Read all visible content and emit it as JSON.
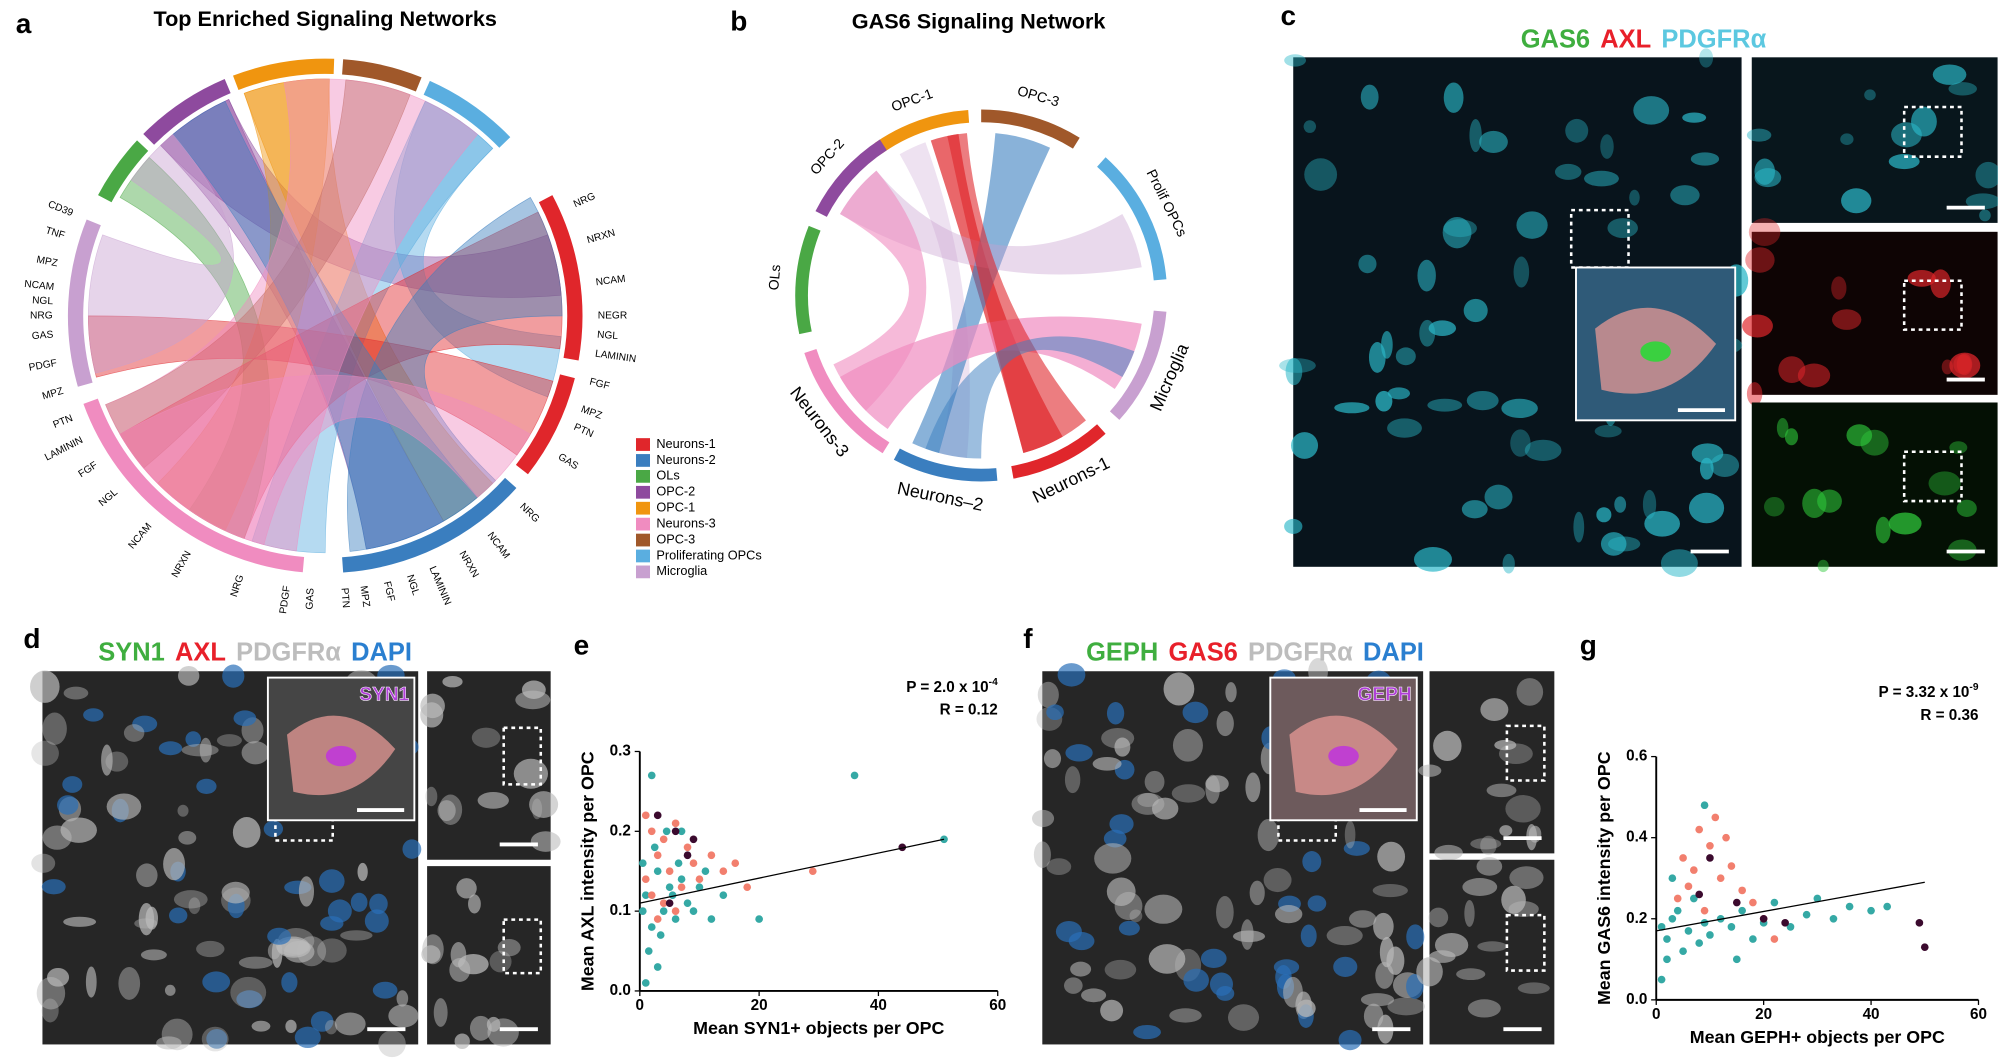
{
  "chart_data": [
    {
      "type": "chord",
      "panel": "a",
      "title": "Top Enriched Signaling Networks",
      "labels": [
        "NRG",
        "NRXN",
        "NCAM",
        "NEGR",
        "NGL",
        "LAMININ",
        "FGF",
        "MPZ",
        "PTN",
        "GAS",
        "NRG",
        "NCAM",
        "NRXN",
        "LAMININ",
        "NGL",
        "FGF",
        "MPZ",
        "PTN",
        "GAS",
        "PDGF",
        "NRG",
        "NRXN",
        "NCAM",
        "NGL",
        "FGF",
        "LAMININ",
        "PTN",
        "MPZ",
        "PDGF",
        "GAS",
        "NRG",
        "NGL",
        "NCAM",
        "MPZ",
        "TNF",
        "CD39"
      ],
      "legend": [
        {
          "name": "Neurons-1",
          "color": "#e0262b"
        },
        {
          "name": "Neurons-2",
          "color": "#3a7ebf"
        },
        {
          "name": "OLs",
          "color": "#4aa845"
        },
        {
          "name": "OPC-2",
          "color": "#8e4a9e"
        },
        {
          "name": "OPC-1",
          "color": "#f0950f"
        },
        {
          "name": "Neurons-3",
          "color": "#f08cc0"
        },
        {
          "name": "OPC-3",
          "color": "#a0582a"
        },
        {
          "name": "Proliferating OPCs",
          "color": "#5aaee0"
        },
        {
          "name": "Microglia",
          "color": "#c8a0d0"
        }
      ]
    },
    {
      "type": "chord",
      "panel": "b",
      "title": "GAS6 Signaling Network",
      "groups": [
        {
          "name": "OPC-1",
          "color": "#f0950f"
        },
        {
          "name": "OPC-3",
          "color": "#a0582a"
        },
        {
          "name": "Prolif OPCs",
          "color": "#5aaee0"
        },
        {
          "name": "Microglia",
          "color": "#c8a0d0"
        },
        {
          "name": "Neurons-1",
          "color": "#e0262b"
        },
        {
          "name": "Neurons–2",
          "color": "#3a7ebf"
        },
        {
          "name": "Neurons-3",
          "color": "#f08cc0"
        },
        {
          "name": "OLs",
          "color": "#4aa845"
        },
        {
          "name": "OPC-2",
          "color": "#8e4a9e"
        }
      ]
    },
    {
      "type": "scatter",
      "panel": "e",
      "p_text": "P = 2.0 x 10",
      "p_exp": "-4",
      "r_text": "R = 0.12",
      "xlabel": "Mean SYN1+ objects per OPC",
      "ylabel": "Mean AXL intensity per OPC",
      "xlim": [
        0,
        60
      ],
      "ylim": [
        0,
        0.3
      ],
      "xticks": [
        0,
        20,
        40,
        60
      ],
      "yticks": [
        {
          "value": 0,
          "label": "0.0"
        },
        0.1,
        0.2,
        0.3
      ],
      "series": [
        {
          "color": "#35a9a5",
          "x": [
            1,
            2,
            3,
            4,
            5,
            6,
            7,
            8,
            1.5,
            2.5,
            3.5,
            4.5,
            5.5,
            6.5,
            9,
            10,
            12,
            14,
            20,
            36,
            51,
            2,
            1,
            3,
            7,
            0.5,
            0.5,
            11
          ],
          "values": [
            0.12,
            0.08,
            0.15,
            0.1,
            0.13,
            0.09,
            0.14,
            0.11,
            0.05,
            0.18,
            0.07,
            0.2,
            0.12,
            0.16,
            0.1,
            0.13,
            0.09,
            0.12,
            0.09,
            0.27,
            0.19,
            0.27,
            0.01,
            0.03,
            0.2,
            0.1,
            0.16,
            0.15
          ]
        },
        {
          "color": "#f27f6e",
          "x": [
            1,
            2,
            3,
            4,
            5,
            6,
            7,
            8,
            9,
            10,
            12,
            14,
            16,
            18,
            29,
            2,
            4,
            6,
            1,
            3
          ],
          "values": [
            0.22,
            0.2,
            0.17,
            0.19,
            0.15,
            0.21,
            0.13,
            0.18,
            0.16,
            0.14,
            0.17,
            0.15,
            0.16,
            0.13,
            0.15,
            0.12,
            0.11,
            0.1,
            0.14,
            0.09
          ]
        },
        {
          "color": "#3b0a2e",
          "x": [
            6,
            9,
            44,
            5,
            3,
            8
          ],
          "values": [
            0.2,
            0.19,
            0.18,
            0.11,
            0.22,
            0.17
          ]
        }
      ],
      "trendline": {
        "x": [
          0,
          51
        ],
        "y": [
          0.11,
          0.19
        ]
      }
    },
    {
      "type": "scatter",
      "panel": "g",
      "p_text": "P = 3.32 x 10",
      "p_exp": "-9",
      "r_text": "R = 0.36",
      "xlabel": "Mean GEPH+ objects per OPC",
      "ylabel": "Mean GAS6 intensity per OPC",
      "xlim": [
        0,
        60
      ],
      "ylim": [
        0,
        0.6
      ],
      "xticks": [
        0,
        20,
        40,
        60
      ],
      "yticks": [
        {
          "value": 0,
          "label": "0.0"
        },
        0.2,
        0.4,
        0.6
      ],
      "series": [
        {
          "color": "#35a9a5",
          "x": [
            1,
            2,
            3,
            4,
            5,
            6,
            7,
            8,
            9,
            10,
            12,
            14,
            16,
            18,
            20,
            22,
            25,
            28,
            30,
            33,
            36,
            40,
            43,
            1,
            3,
            9,
            2,
            15
          ],
          "values": [
            0.18,
            0.15,
            0.2,
            0.22,
            0.12,
            0.17,
            0.25,
            0.14,
            0.19,
            0.16,
            0.2,
            0.18,
            0.22,
            0.15,
            0.19,
            0.24,
            0.18,
            0.21,
            0.25,
            0.2,
            0.23,
            0.22,
            0.23,
            0.05,
            0.3,
            0.48,
            0.1,
            0.1
          ]
        },
        {
          "color": "#f27f6e",
          "x": [
            5,
            8,
            10,
            12,
            14,
            6,
            4,
            16,
            18,
            11,
            13,
            20,
            22,
            7,
            9
          ],
          "values": [
            0.35,
            0.42,
            0.38,
            0.3,
            0.33,
            0.28,
            0.25,
            0.27,
            0.24,
            0.45,
            0.4,
            0.2,
            0.15,
            0.32,
            0.22
          ]
        },
        {
          "color": "#3b0a2e",
          "x": [
            10,
            15,
            20,
            24,
            49,
            50,
            8
          ],
          "values": [
            0.35,
            0.24,
            0.2,
            0.19,
            0.19,
            0.13,
            0.26
          ]
        }
      ],
      "trendline": {
        "x": [
          0,
          50
        ],
        "y": [
          0.17,
          0.29
        ]
      }
    }
  ],
  "image_panels": [
    {
      "panel": "c",
      "channels": [
        {
          "text": "GAS6",
          "color": "#3fae3f"
        },
        {
          "text": "AXL",
          "color": "#e8202a"
        },
        {
          "text": "PDGFRα",
          "color": "#5cc8e0"
        }
      ]
    },
    {
      "panel": "d",
      "channels": [
        {
          "text": "SYN1",
          "color": "#3fae3f"
        },
        {
          "text": "AXL",
          "color": "#e8202a"
        },
        {
          "text": "PDGFRα",
          "color": "#bdbdbd"
        },
        {
          "text": "DAPI",
          "color": "#2a7fd0"
        }
      ],
      "inset": "SYN1"
    },
    {
      "panel": "f",
      "channels": [
        {
          "text": "GEPH",
          "color": "#3fae3f"
        },
        {
          "text": "GAS6",
          "color": "#e8202a"
        },
        {
          "text": "PDGFRα",
          "color": "#bdbdbd"
        },
        {
          "text": "DAPI",
          "color": "#2a7fd0"
        }
      ],
      "inset": "GEPH"
    }
  ]
}
